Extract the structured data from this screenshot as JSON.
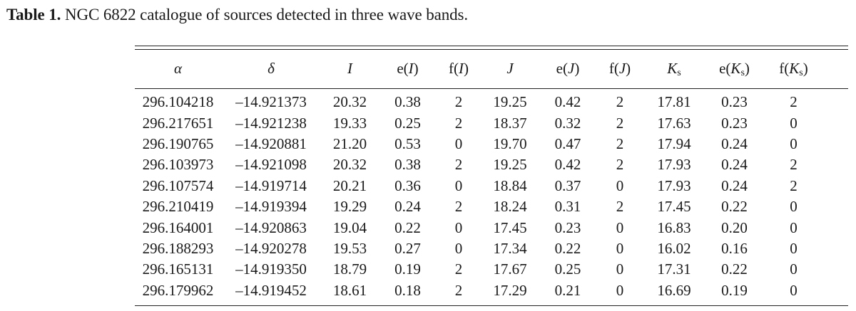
{
  "caption": {
    "label": "Table 1.",
    "text": " NGC 6822 catalogue of sources detected in three wave bands."
  },
  "table": {
    "headers": [
      {
        "pre": "",
        "var": "α",
        "sub": "",
        "post": ""
      },
      {
        "pre": "",
        "var": "δ",
        "sub": "",
        "post": ""
      },
      {
        "pre": "",
        "var": "I",
        "sub": "",
        "post": ""
      },
      {
        "pre": "e(",
        "var": "I",
        "sub": "",
        "post": ")"
      },
      {
        "pre": "f(",
        "var": "I",
        "sub": "",
        "post": ")"
      },
      {
        "pre": "",
        "var": "J",
        "sub": "",
        "post": ""
      },
      {
        "pre": "e(",
        "var": "J",
        "sub": "",
        "post": ")"
      },
      {
        "pre": "f(",
        "var": "J",
        "sub": "",
        "post": ")"
      },
      {
        "pre": "",
        "var": "K",
        "sub": "s",
        "post": ""
      },
      {
        "pre": "e(",
        "var": "K",
        "sub": "s",
        "post": ")"
      },
      {
        "pre": "f(",
        "var": "K",
        "sub": "s",
        "post": ")"
      }
    ],
    "rows": [
      [
        "296.104218",
        "–14.921373",
        "20.32",
        "0.38",
        "2",
        "19.25",
        "0.42",
        "2",
        "17.81",
        "0.23",
        "2"
      ],
      [
        "296.217651",
        "–14.921238",
        "19.33",
        "0.25",
        "2",
        "18.37",
        "0.32",
        "2",
        "17.63",
        "0.23",
        "0"
      ],
      [
        "296.190765",
        "–14.920881",
        "21.20",
        "0.53",
        "0",
        "19.70",
        "0.47",
        "2",
        "17.94",
        "0.24",
        "0"
      ],
      [
        "296.103973",
        "–14.921098",
        "20.32",
        "0.38",
        "2",
        "19.25",
        "0.42",
        "2",
        "17.93",
        "0.24",
        "2"
      ],
      [
        "296.107574",
        "–14.919714",
        "20.21",
        "0.36",
        "0",
        "18.84",
        "0.37",
        "0",
        "17.93",
        "0.24",
        "2"
      ],
      [
        "296.210419",
        "–14.919394",
        "19.29",
        "0.24",
        "2",
        "18.24",
        "0.31",
        "2",
        "17.45",
        "0.22",
        "0"
      ],
      [
        "296.164001",
        "–14.920863",
        "19.04",
        "0.22",
        "0",
        "17.45",
        "0.23",
        "0",
        "16.83",
        "0.20",
        "0"
      ],
      [
        "296.188293",
        "–14.920278",
        "19.53",
        "0.27",
        "0",
        "17.34",
        "0.22",
        "0",
        "16.02",
        "0.16",
        "0"
      ],
      [
        "296.165131",
        "–14.919350",
        "18.79",
        "0.19",
        "2",
        "17.67",
        "0.25",
        "0",
        "17.31",
        "0.22",
        "0"
      ],
      [
        "296.179962",
        "–14.919452",
        "18.61",
        "0.18",
        "2",
        "17.29",
        "0.21",
        "0",
        "16.69",
        "0.19",
        "0"
      ]
    ]
  }
}
